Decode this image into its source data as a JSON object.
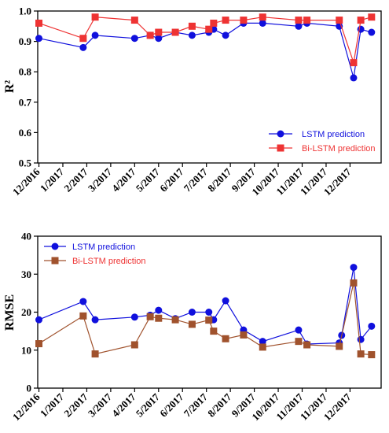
{
  "chart_data": [
    {
      "type": "line",
      "ylabel": "R²",
      "ylim": [
        0.5,
        1.0
      ],
      "yticks": [
        0.5,
        0.6,
        0.7,
        0.8,
        0.9,
        1.0
      ],
      "ytick_labels": [
        "0.5",
        "0.6",
        "0.7",
        "0.8",
        "0.9",
        "1.0"
      ],
      "xticks": [
        0,
        1,
        2,
        3,
        4,
        5,
        6,
        7,
        8,
        9,
        10,
        11,
        12,
        13
      ],
      "xtick_labels": [
        "12/2016",
        "1/2017",
        "2/2017",
        "3/2017",
        "4/2017",
        "5/2017",
        "6/2017",
        "7/2017",
        "8/2017",
        "9/2017",
        "10/2017",
        "11/2017",
        "11/2017",
        "12/2017"
      ],
      "xlim": [
        -0.05,
        14.3
      ],
      "grid": false,
      "legend_position": "bottom-right",
      "series": [
        {
          "name": "LSTM prediction",
          "color": "#1010dd",
          "marker": "circle",
          "x": [
            0,
            1.85,
            2.35,
            4.0,
            4.65,
            5.0,
            5.7,
            6.4,
            7.1,
            7.3,
            7.8,
            8.55,
            9.35,
            10.85,
            11.2,
            12.55,
            13.15,
            13.45,
            13.9
          ],
          "y": [
            0.91,
            0.88,
            0.92,
            0.91,
            0.92,
            0.91,
            0.93,
            0.92,
            0.93,
            0.94,
            0.92,
            0.96,
            0.96,
            0.95,
            0.96,
            0.95,
            0.78,
            0.94,
            0.93
          ]
        },
        {
          "name": "Bi-LSTM prediction",
          "color": "#ee3333",
          "marker": "square",
          "x": [
            0,
            1.85,
            2.35,
            4.0,
            4.65,
            5.0,
            5.7,
            6.4,
            7.1,
            7.3,
            7.8,
            8.55,
            9.35,
            10.85,
            11.2,
            12.55,
            13.15,
            13.45,
            13.9
          ],
          "y": [
            0.96,
            0.91,
            0.98,
            0.97,
            0.92,
            0.93,
            0.93,
            0.95,
            0.94,
            0.96,
            0.97,
            0.97,
            0.98,
            0.97,
            0.97,
            0.97,
            0.83,
            0.97,
            0.98
          ]
        }
      ]
    },
    {
      "type": "line",
      "ylabel": "RMSE",
      "ylim": [
        0,
        40
      ],
      "yticks": [
        0,
        10,
        20,
        30,
        40
      ],
      "ytick_labels": [
        "0",
        "10",
        "20",
        "30",
        "40"
      ],
      "xticks": [
        0,
        1,
        2,
        3,
        4,
        5,
        6,
        7,
        8,
        9,
        10,
        11,
        12,
        13
      ],
      "xtick_labels": [
        "12/2016",
        "1/2017",
        "2/2017",
        "3/2017",
        "4/2017",
        "5/2017",
        "6/2017",
        "7/2017",
        "8/2017",
        "9/2017",
        "10/2017",
        "11/2017",
        "11/2017",
        "12/2017"
      ],
      "xlim": [
        -0.05,
        14.3
      ],
      "grid": false,
      "legend_position": "top-left",
      "series": [
        {
          "name": "LSTM prediction",
          "color": "#1010dd",
          "marker": "circle",
          "x": [
            0,
            1.85,
            2.35,
            4.0,
            4.65,
            5.0,
            5.7,
            6.4,
            7.1,
            7.3,
            7.8,
            8.55,
            9.35,
            10.85,
            11.2,
            12.55,
            12.65,
            13.15,
            13.45,
            13.9
          ],
          "y": [
            18.0,
            22.8,
            18.0,
            18.7,
            19.2,
            20.5,
            18.3,
            20.0,
            20.0,
            18.0,
            23.0,
            15.3,
            12.3,
            15.3,
            11.6,
            11.9,
            13.9,
            31.8,
            12.8,
            16.3
          ]
        },
        {
          "name": "Bi-LSTM prediction",
          "color": "#a0522d",
          "marker": "square",
          "x": [
            0,
            1.85,
            2.35,
            4.0,
            4.65,
            5.0,
            5.7,
            6.4,
            7.1,
            7.3,
            7.8,
            8.55,
            9.35,
            10.85,
            11.2,
            12.55,
            13.15,
            13.45,
            13.9
          ],
          "y": [
            11.7,
            19.0,
            9.0,
            11.4,
            18.8,
            18.4,
            18.0,
            16.8,
            17.9,
            15.0,
            13.0,
            14.0,
            10.8,
            12.3,
            11.4,
            11.0,
            27.7,
            9.0,
            8.8
          ]
        }
      ]
    }
  ]
}
